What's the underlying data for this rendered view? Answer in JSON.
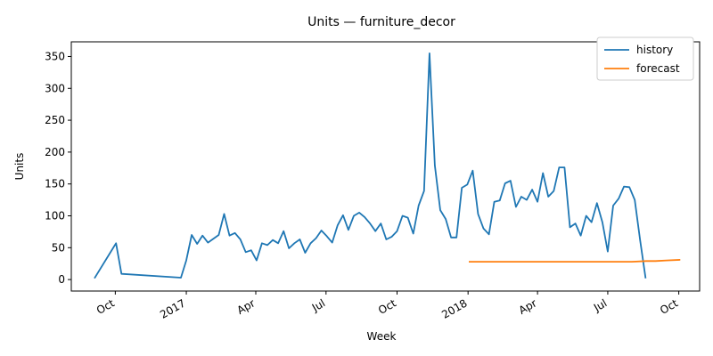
{
  "chart_data": {
    "type": "line",
    "title": "Units — furniture_decor",
    "xlabel": "Week",
    "ylabel": "Units",
    "ylim": [
      -18,
      373
    ],
    "xlim": [
      "2016-08-05",
      "2018-10-28"
    ],
    "grid": false,
    "legend_position": "top-right",
    "x_ticks": [
      {
        "date": "2016-10-01",
        "label": "Oct"
      },
      {
        "date": "2017-01-01",
        "label": "2017"
      },
      {
        "date": "2017-04-01",
        "label": "Apr"
      },
      {
        "date": "2017-07-01",
        "label": "Jul"
      },
      {
        "date": "2017-10-01",
        "label": "Oct"
      },
      {
        "date": "2018-01-01",
        "label": "2018"
      },
      {
        "date": "2018-04-01",
        "label": "Apr"
      },
      {
        "date": "2018-07-01",
        "label": "Jul"
      },
      {
        "date": "2018-10-01",
        "label": "Oct"
      }
    ],
    "y_ticks": [
      0,
      50,
      100,
      150,
      200,
      250,
      300,
      350
    ],
    "series": [
      {
        "name": "history",
        "color": "#1f77b4",
        "points": [
          [
            "2016-09-04",
            2
          ],
          [
            "2016-10-02",
            57
          ],
          [
            "2016-10-09",
            9
          ],
          [
            "2016-12-25",
            3
          ],
          [
            "2017-01-01",
            30
          ],
          [
            "2017-01-08",
            70
          ],
          [
            "2017-01-15",
            56
          ],
          [
            "2017-01-22",
            69
          ],
          [
            "2017-01-29",
            58
          ],
          [
            "2017-02-12",
            70
          ],
          [
            "2017-02-19",
            103
          ],
          [
            "2017-02-26",
            69
          ],
          [
            "2017-03-05",
            73
          ],
          [
            "2017-03-12",
            63
          ],
          [
            "2017-03-19",
            43
          ],
          [
            "2017-03-26",
            46
          ],
          [
            "2017-04-02",
            30
          ],
          [
            "2017-04-09",
            57
          ],
          [
            "2017-04-16",
            54
          ],
          [
            "2017-04-23",
            62
          ],
          [
            "2017-04-30",
            57
          ],
          [
            "2017-05-07",
            76
          ],
          [
            "2017-05-14",
            49
          ],
          [
            "2017-05-21",
            57
          ],
          [
            "2017-05-28",
            63
          ],
          [
            "2017-06-04",
            42
          ],
          [
            "2017-06-11",
            57
          ],
          [
            "2017-06-18",
            65
          ],
          [
            "2017-06-25",
            77
          ],
          [
            "2017-07-02",
            68
          ],
          [
            "2017-07-09",
            58
          ],
          [
            "2017-07-16",
            85
          ],
          [
            "2017-07-23",
            101
          ],
          [
            "2017-07-30",
            78
          ],
          [
            "2017-08-06",
            100
          ],
          [
            "2017-08-13",
            105
          ],
          [
            "2017-08-20",
            98
          ],
          [
            "2017-08-27",
            88
          ],
          [
            "2017-09-03",
            76
          ],
          [
            "2017-09-10",
            88
          ],
          [
            "2017-09-17",
            63
          ],
          [
            "2017-09-24",
            67
          ],
          [
            "2017-10-01",
            76
          ],
          [
            "2017-10-08",
            100
          ],
          [
            "2017-10-15",
            97
          ],
          [
            "2017-10-22",
            72
          ],
          [
            "2017-10-29",
            116
          ],
          [
            "2017-11-05",
            139
          ],
          [
            "2017-11-12",
            355
          ],
          [
            "2017-11-19",
            179
          ],
          [
            "2017-11-26",
            109
          ],
          [
            "2017-12-03",
            95
          ],
          [
            "2017-12-10",
            66
          ],
          [
            "2017-12-17",
            66
          ],
          [
            "2017-12-24",
            144
          ],
          [
            "2017-12-31",
            149
          ],
          [
            "2018-01-07",
            171
          ],
          [
            "2018-01-14",
            103
          ],
          [
            "2018-01-21",
            80
          ],
          [
            "2018-01-28",
            71
          ],
          [
            "2018-02-04",
            122
          ],
          [
            "2018-02-11",
            124
          ],
          [
            "2018-02-18",
            151
          ],
          [
            "2018-02-25",
            155
          ],
          [
            "2018-03-04",
            114
          ],
          [
            "2018-03-11",
            130
          ],
          [
            "2018-03-18",
            125
          ],
          [
            "2018-03-25",
            141
          ],
          [
            "2018-04-01",
            122
          ],
          [
            "2018-04-08",
            167
          ],
          [
            "2018-04-15",
            130
          ],
          [
            "2018-04-22",
            139
          ],
          [
            "2018-04-29",
            176
          ],
          [
            "2018-05-06",
            176
          ],
          [
            "2018-05-13",
            82
          ],
          [
            "2018-05-20",
            88
          ],
          [
            "2018-05-27",
            69
          ],
          [
            "2018-06-03",
            100
          ],
          [
            "2018-06-10",
            90
          ],
          [
            "2018-06-17",
            120
          ],
          [
            "2018-06-24",
            90
          ],
          [
            "2018-07-01",
            44
          ],
          [
            "2018-07-08",
            116
          ],
          [
            "2018-07-15",
            127
          ],
          [
            "2018-07-22",
            146
          ],
          [
            "2018-07-29",
            145
          ],
          [
            "2018-08-05",
            125
          ],
          [
            "2018-08-12",
            61
          ],
          [
            "2018-08-19",
            2
          ]
        ]
      },
      {
        "name": "forecast",
        "color": "#ff7f0e",
        "points": [
          [
            "2018-01-02",
            28
          ],
          [
            "2018-02-01",
            28
          ],
          [
            "2018-03-01",
            28
          ],
          [
            "2018-04-01",
            28
          ],
          [
            "2018-05-01",
            28
          ],
          [
            "2018-06-01",
            28
          ],
          [
            "2018-07-01",
            28
          ],
          [
            "2018-08-01",
            28
          ],
          [
            "2018-08-20",
            29
          ],
          [
            "2018-09-01",
            29
          ],
          [
            "2018-09-15",
            30
          ],
          [
            "2018-10-03",
            31
          ]
        ]
      }
    ]
  }
}
